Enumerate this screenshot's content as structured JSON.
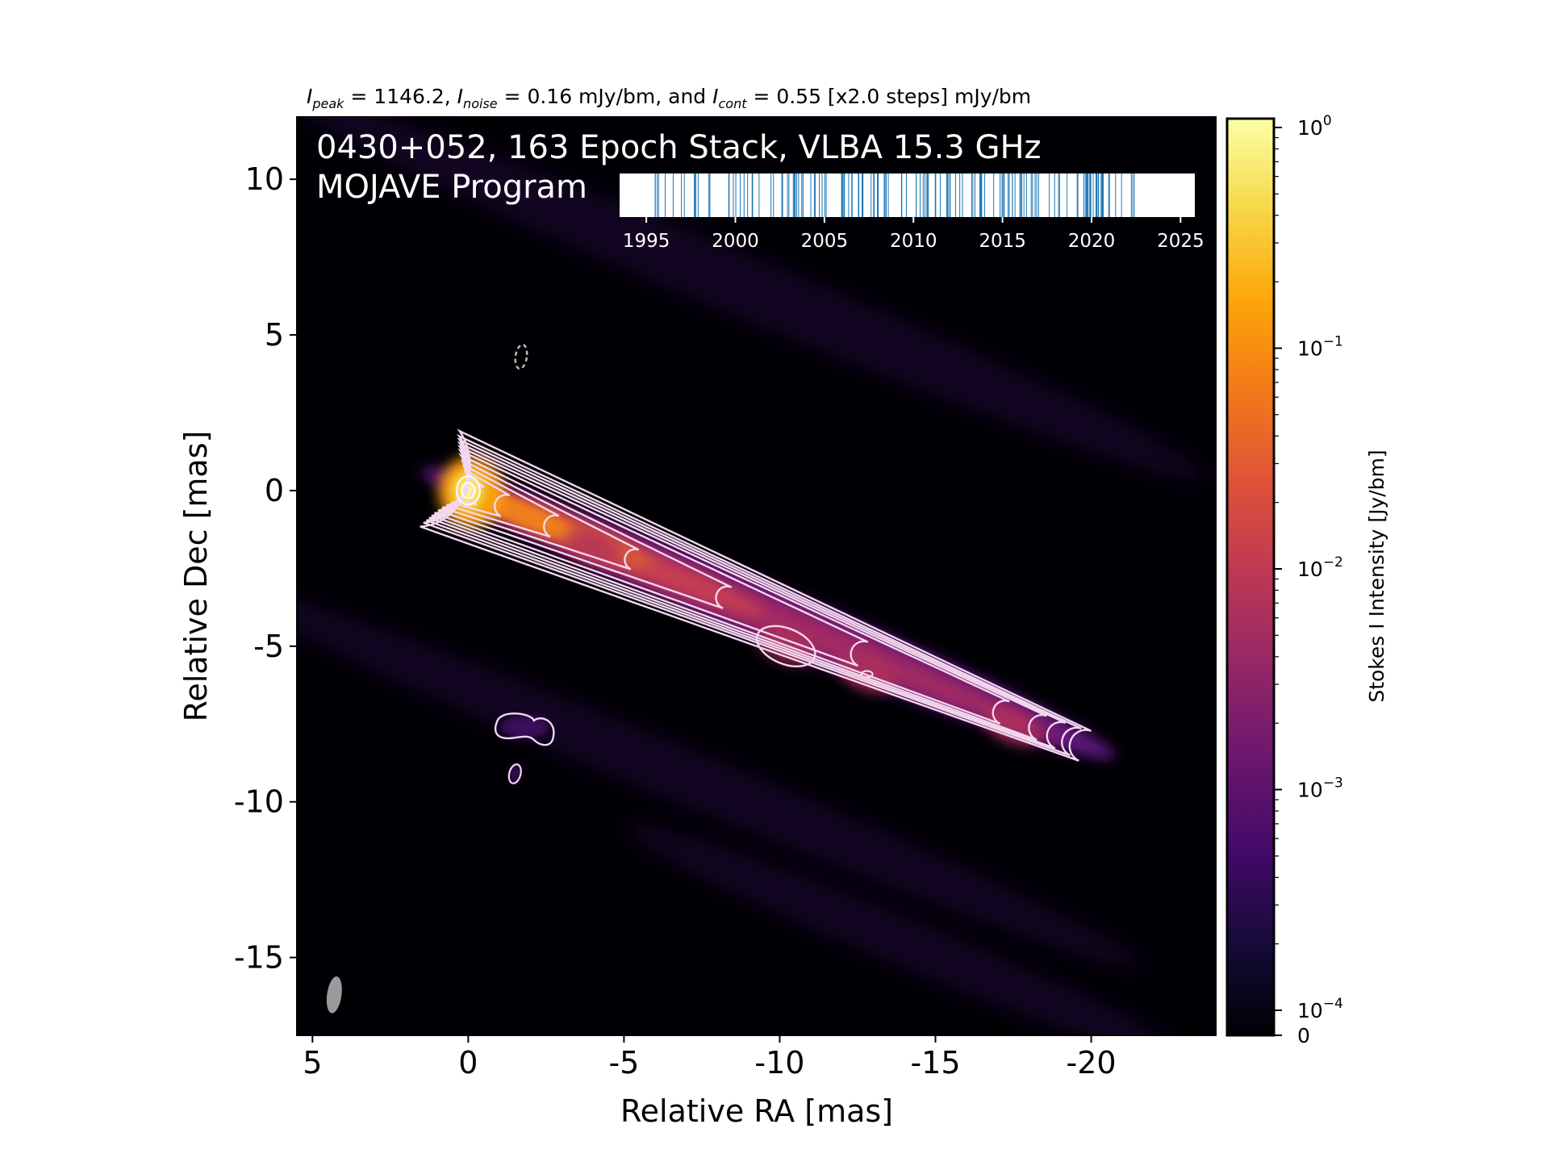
{
  "chart_data": {
    "type": "heatmap",
    "header": {
      "peak_sym": "I",
      "peak_sub": "peak",
      "peak_txt": " = 1146.2, ",
      "noise_sym": "I",
      "noise_sub": "noise",
      "noise_txt": " = 0.16 mJy/bm, and ",
      "cont_sym": "I",
      "cont_sub": "cont",
      "cont_txt": " = 0.55 [x2.0 steps] mJy/bm"
    },
    "title_line1": "0430+052, 163 Epoch Stack, VLBA 15.3 GHz",
    "title_line2": "MOJAVE Program",
    "xlabel": "Relative RA [mas]",
    "ylabel": "Relative Dec [mas]",
    "xlim": [
      5.5,
      -24
    ],
    "ylim": [
      -17.5,
      12
    ],
    "xticks": [
      5,
      0,
      -5,
      -10,
      -15,
      -20
    ],
    "xtick_labels": [
      "5",
      "0",
      "-5",
      "-10",
      "-15",
      "-20"
    ],
    "yticks": [
      10,
      5,
      0,
      -5,
      -10,
      -15
    ],
    "ytick_labels": [
      "10",
      "5",
      "0",
      "-5",
      "-10",
      "-15"
    ],
    "colorbar": {
      "label": "Stokes I Intensity [Jy/bm]",
      "scale": "log",
      "tick_values": [
        1,
        0.1,
        0.01,
        0.001,
        0.0001,
        0
      ],
      "tick_bases": [
        "10",
        "10",
        "10",
        "10",
        "10",
        "0"
      ],
      "tick_exps": [
        "0",
        "−1",
        "−2",
        "−3",
        "−4",
        ""
      ],
      "colormap": "inferno"
    },
    "epoch_timeline": {
      "xlim": [
        1993.5,
        2025.8
      ],
      "ticks": [
        1995,
        2000,
        2005,
        2010,
        2015,
        2020,
        2025
      ],
      "tick_labels": [
        "1995",
        "2000",
        "2005",
        "2010",
        "2015",
        "2020",
        "2025"
      ],
      "epoch_count": 163,
      "first_epoch": 1995.5,
      "last_epoch": 2022.4,
      "line_color": "#1f77b4"
    },
    "jet": {
      "core": [
        0,
        0
      ],
      "knots": [
        [
          -4,
          -1.8
        ],
        [
          -10.2,
          -5
        ],
        [
          -12.8,
          -5.9
        ],
        [
          -17.5,
          -7.6
        ]
      ],
      "terminus": [
        -19.8,
        -8.2
      ],
      "peak_jy_per_bm": 1.1462,
      "contour_base_mjy_per_bm": 0.55,
      "contour_step_factor": 2.0
    },
    "beam": {
      "x": 4.3,
      "y": -16.2
    }
  }
}
